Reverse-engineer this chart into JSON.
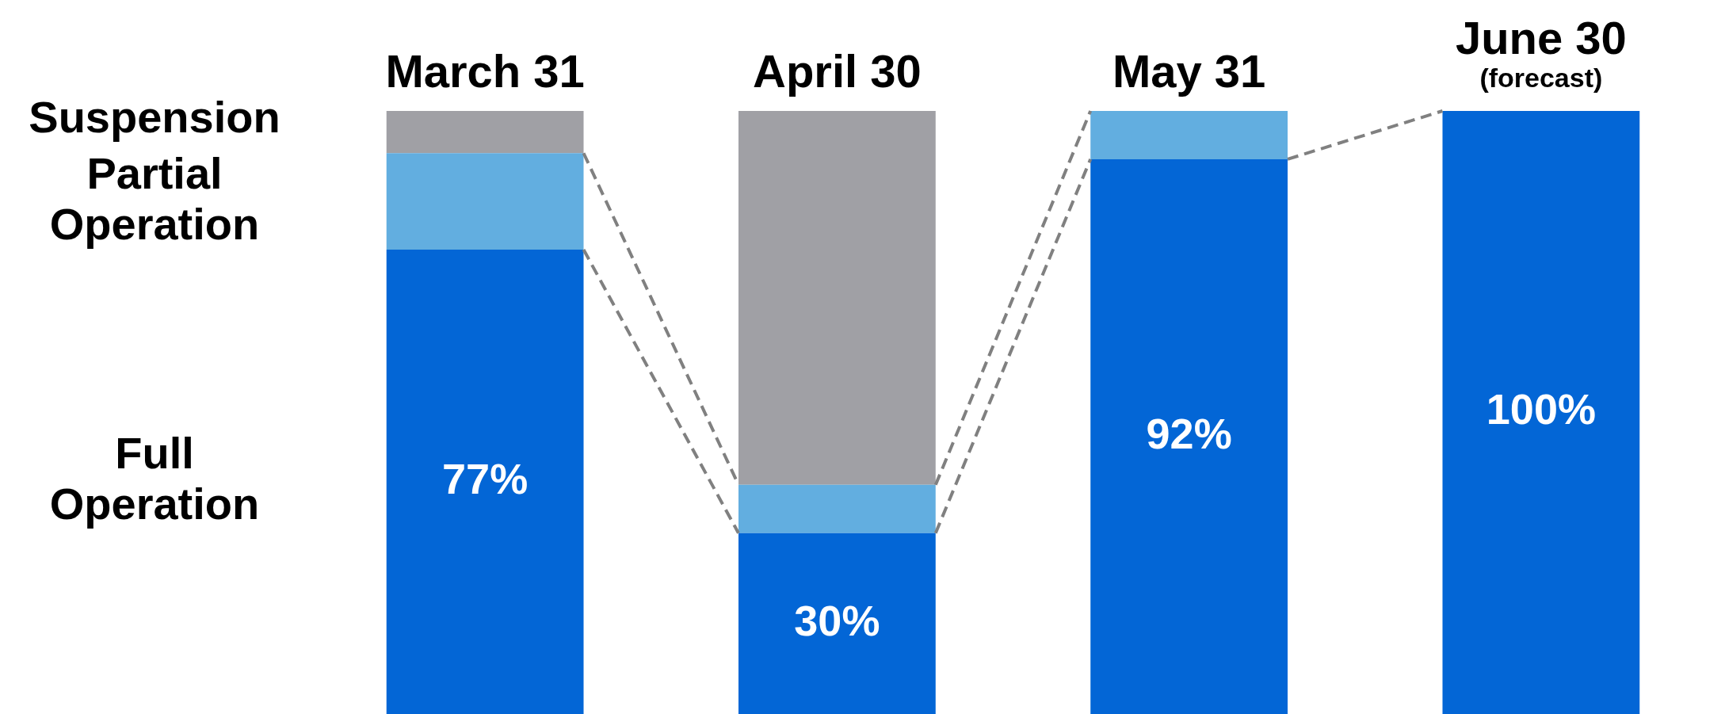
{
  "chart_data": {
    "type": "bar",
    "stacked": true,
    "categories": [
      "March 31",
      "April 30",
      "May 31",
      "June 30\n(forecast)"
    ],
    "series": [
      {
        "name": "Full Operation",
        "color": "#0366d6",
        "values": [
          77,
          30,
          92,
          100
        ],
        "value_labels": [
          "77%",
          "30%",
          "92%",
          "100%"
        ]
      },
      {
        "name": "Partial Operation",
        "color": "#62aee0",
        "values": [
          16,
          8,
          8,
          0
        ]
      },
      {
        "name": "Suspension",
        "color": "#a0a0a5",
        "values": [
          7,
          62,
          0,
          0
        ]
      }
    ],
    "ylim": [
      0,
      100
    ],
    "tick_labels": "x",
    "legend": "left"
  }
}
